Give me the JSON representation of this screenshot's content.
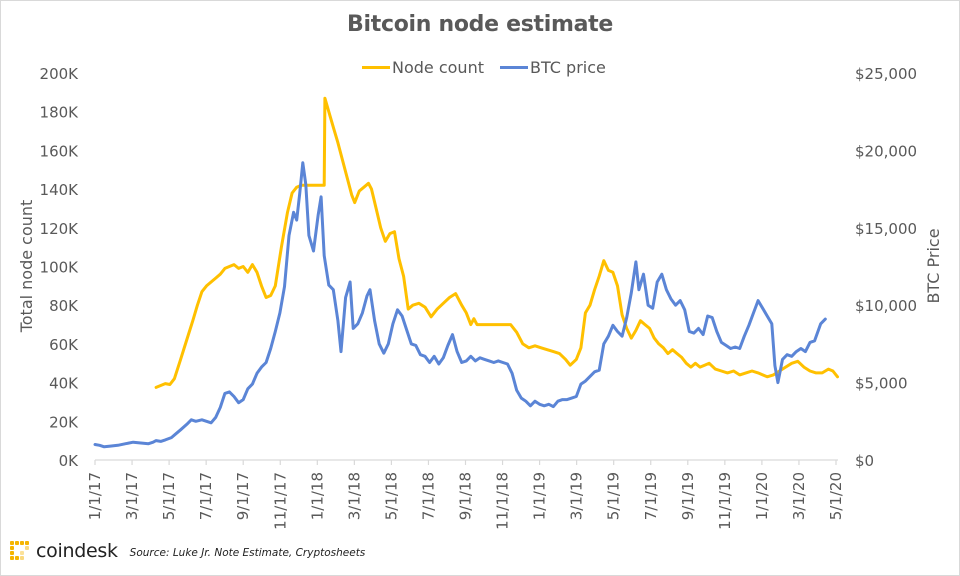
{
  "chart_data": {
    "type": "line",
    "title": "Bitcoin node estimate",
    "xlabel": "",
    "ylabel": "Total node count",
    "ylabel_right": "BTC Price",
    "legend": {
      "placement": "top-center",
      "entries": [
        "Node count",
        "BTC price"
      ]
    },
    "grid": false,
    "x_unit": "months since 1/1/17",
    "x_range": [
      0,
      40
    ],
    "x_tick_labels": [
      "1/1/17",
      "3/1/17",
      "5/1/17",
      "7/1/17",
      "9/1/17",
      "11/1/17",
      "1/1/18",
      "3/1/18",
      "5/1/18",
      "7/1/18",
      "9/1/18",
      "11/1/18",
      "1/1/19",
      "3/1/19",
      "5/1/19",
      "7/1/19",
      "9/1/19",
      "11/1/19",
      "1/1/20",
      "3/1/20",
      "5/1/20"
    ],
    "y_left": {
      "range": [
        0,
        200000
      ],
      "tick_labels": [
        "0K",
        "20K",
        "40K",
        "60K",
        "80K",
        "100K",
        "120K",
        "140K",
        "160K",
        "180K",
        "200K"
      ]
    },
    "y_right": {
      "range": [
        0,
        25000
      ],
      "tick_labels": [
        "$0",
        "$5,000",
        "$10,000",
        "$15,000",
        "$20,000",
        "$25,000"
      ]
    },
    "series": [
      {
        "name": "Node count",
        "axis": "left",
        "color": "#FFC000",
        "points": [
          [
            4.0,
            37500
          ],
          [
            4.3,
            38500
          ],
          [
            4.6,
            39500
          ],
          [
            4.9,
            39000
          ],
          [
            5.2,
            42000
          ],
          [
            5.6,
            52000
          ],
          [
            6.0,
            62000
          ],
          [
            6.4,
            72000
          ],
          [
            6.7,
            80000
          ],
          [
            7.0,
            87000
          ],
          [
            7.3,
            90000
          ],
          [
            7.6,
            92000
          ],
          [
            7.9,
            94000
          ],
          [
            8.2,
            96000
          ],
          [
            8.5,
            99000
          ],
          [
            8.8,
            100000
          ],
          [
            9.1,
            101000
          ],
          [
            9.4,
            99000
          ],
          [
            9.7,
            100000
          ],
          [
            10.0,
            97000
          ],
          [
            10.3,
            101000
          ],
          [
            10.6,
            97000
          ],
          [
            10.9,
            90000
          ],
          [
            11.2,
            84000
          ],
          [
            11.5,
            85000
          ],
          [
            11.8,
            90000
          ],
          [
            12.2,
            110000
          ],
          [
            12.6,
            128000
          ],
          [
            12.9,
            138000
          ],
          [
            13.2,
            141000
          ],
          [
            13.5,
            142000
          ],
          [
            14.0,
            142000
          ],
          [
            14.6,
            142000
          ],
          [
            15.0,
            142000
          ],
          [
            15.05,
            187000
          ],
          [
            15.3,
            180000
          ],
          [
            15.6,
            172000
          ],
          [
            15.9,
            164000
          ],
          [
            16.2,
            155000
          ],
          [
            16.5,
            146000
          ],
          [
            16.8,
            137000
          ],
          [
            17.0,
            133000
          ],
          [
            17.3,
            139000
          ],
          [
            17.6,
            141000
          ],
          [
            17.9,
            143000
          ],
          [
            18.1,
            140000
          ],
          [
            18.4,
            130000
          ],
          [
            18.7,
            120000
          ],
          [
            19.0,
            113000
          ],
          [
            19.3,
            117000
          ],
          [
            19.6,
            118000
          ],
          [
            19.9,
            104000
          ],
          [
            20.2,
            95000
          ],
          [
            20.5,
            78000
          ],
          [
            20.8,
            80000
          ],
          [
            21.2,
            81000
          ],
          [
            21.6,
            79000
          ],
          [
            22.0,
            74000
          ],
          [
            22.4,
            78000
          ],
          [
            22.8,
            81000
          ],
          [
            23.2,
            84000
          ],
          [
            23.6,
            86000
          ],
          [
            24.0,
            80000
          ],
          [
            24.3,
            76000
          ],
          [
            24.6,
            70000
          ],
          [
            24.8,
            73000
          ],
          [
            25.0,
            70000
          ],
          [
            25.6,
            70000
          ],
          [
            26.4,
            70000
          ],
          [
            27.2,
            70000
          ],
          [
            27.6,
            66000
          ],
          [
            28.0,
            60000
          ],
          [
            28.4,
            58000
          ],
          [
            28.8,
            59000
          ],
          [
            29.2,
            58000
          ],
          [
            29.6,
            57000
          ],
          [
            30.0,
            56000
          ],
          [
            30.4,
            55000
          ],
          [
            30.8,
            52000
          ],
          [
            31.1,
            49000
          ],
          [
            31.5,
            52000
          ],
          [
            31.8,
            58000
          ],
          [
            32.1,
            76000
          ],
          [
            32.4,
            80000
          ],
          [
            32.7,
            88000
          ],
          [
            33.0,
            95000
          ],
          [
            33.3,
            103000
          ],
          [
            33.6,
            98000
          ],
          [
            33.9,
            97000
          ],
          [
            34.2,
            90000
          ],
          [
            34.5,
            75000
          ],
          [
            34.8,
            68000
          ],
          [
            35.1,
            63000
          ],
          [
            35.4,
            67000
          ],
          [
            35.7,
            72000
          ],
          [
            36.0,
            70000
          ],
          [
            36.3,
            68000
          ],
          [
            36.6,
            63000
          ],
          [
            36.9,
            60000
          ],
          [
            37.2,
            58000
          ],
          [
            37.5,
            55000
          ],
          [
            37.8,
            57000
          ],
          [
            38.1,
            55000
          ],
          [
            38.4,
            53000
          ],
          [
            38.7,
            50000
          ],
          [
            39.0,
            48000
          ],
          [
            39.3,
            50000
          ],
          [
            39.6,
            48000
          ],
          [
            39.9,
            49000
          ],
          [
            40.2,
            50000
          ],
          [
            40.6,
            47000
          ],
          [
            41.0,
            46000
          ],
          [
            41.4,
            45000
          ],
          [
            41.8,
            46000
          ],
          [
            42.2,
            44000
          ],
          [
            42.6,
            45000
          ],
          [
            43.0,
            46000
          ],
          [
            43.4,
            45000
          ],
          [
            43.7,
            44000
          ],
          [
            44.0,
            43000
          ],
          [
            44.4,
            44000
          ],
          [
            44.8,
            46000
          ],
          [
            45.2,
            48000
          ],
          [
            45.6,
            50000
          ],
          [
            46.0,
            51000
          ],
          [
            46.4,
            48000
          ],
          [
            46.8,
            46000
          ],
          [
            47.2,
            45000
          ],
          [
            47.6,
            45000
          ],
          [
            48.0,
            47000
          ],
          [
            48.3,
            46000
          ],
          [
            48.6,
            43000
          ]
        ]
      },
      {
        "name": "BTC price",
        "axis": "right",
        "color": "#5B85D6",
        "points": [
          [
            0.0,
            1000
          ],
          [
            0.3,
            950
          ],
          [
            0.6,
            850
          ],
          [
            1.0,
            900
          ],
          [
            1.5,
            950
          ],
          [
            2.0,
            1050
          ],
          [
            2.5,
            1150
          ],
          [
            3.0,
            1100
          ],
          [
            3.5,
            1050
          ],
          [
            3.8,
            1150
          ],
          [
            4.0,
            1250
          ],
          [
            4.3,
            1200
          ],
          [
            4.6,
            1300
          ],
          [
            5.0,
            1450
          ],
          [
            5.3,
            1700
          ],
          [
            5.6,
            1950
          ],
          [
            6.0,
            2300
          ],
          [
            6.3,
            2600
          ],
          [
            6.6,
            2500
          ],
          [
            7.0,
            2600
          ],
          [
            7.3,
            2500
          ],
          [
            7.6,
            2400
          ],
          [
            7.9,
            2750
          ],
          [
            8.2,
            3400
          ],
          [
            8.5,
            4300
          ],
          [
            8.8,
            4400
          ],
          [
            9.1,
            4100
          ],
          [
            9.4,
            3700
          ],
          [
            9.7,
            3900
          ],
          [
            10.0,
            4600
          ],
          [
            10.3,
            4900
          ],
          [
            10.6,
            5600
          ],
          [
            10.9,
            6000
          ],
          [
            11.2,
            6300
          ],
          [
            11.5,
            7200
          ],
          [
            11.8,
            8300
          ],
          [
            12.1,
            9500
          ],
          [
            12.4,
            11200
          ],
          [
            12.7,
            14500
          ],
          [
            13.0,
            16000
          ],
          [
            13.2,
            15500
          ],
          [
            13.4,
            17200
          ],
          [
            13.6,
            19200
          ],
          [
            13.8,
            17800
          ],
          [
            14.0,
            14500
          ],
          [
            14.3,
            13500
          ],
          [
            14.6,
            15800
          ],
          [
            14.8,
            17000
          ],
          [
            15.0,
            13200
          ],
          [
            15.3,
            11300
          ],
          [
            15.6,
            11000
          ],
          [
            15.9,
            9000
          ],
          [
            16.1,
            7000
          ],
          [
            16.4,
            10500
          ],
          [
            16.7,
            11500
          ],
          [
            16.9,
            8500
          ],
          [
            17.2,
            8800
          ],
          [
            17.5,
            9500
          ],
          [
            17.8,
            10600
          ],
          [
            18.0,
            11000
          ],
          [
            18.3,
            9000
          ],
          [
            18.6,
            7500
          ],
          [
            18.9,
            6900
          ],
          [
            19.2,
            7500
          ],
          [
            19.5,
            8800
          ],
          [
            19.8,
            9700
          ],
          [
            20.1,
            9300
          ],
          [
            20.4,
            8400
          ],
          [
            20.7,
            7500
          ],
          [
            21.0,
            7400
          ],
          [
            21.3,
            6800
          ],
          [
            21.6,
            6700
          ],
          [
            21.9,
            6300
          ],
          [
            22.2,
            6700
          ],
          [
            22.5,
            6200
          ],
          [
            22.8,
            6600
          ],
          [
            23.1,
            7400
          ],
          [
            23.4,
            8100
          ],
          [
            23.7,
            7000
          ],
          [
            24.0,
            6300
          ],
          [
            24.3,
            6400
          ],
          [
            24.6,
            6700
          ],
          [
            24.9,
            6400
          ],
          [
            25.2,
            6600
          ],
          [
            25.5,
            6500
          ],
          [
            25.8,
            6400
          ],
          [
            26.1,
            6300
          ],
          [
            26.4,
            6400
          ],
          [
            26.7,
            6300
          ],
          [
            27.0,
            6200
          ],
          [
            27.3,
            5600
          ],
          [
            27.6,
            4500
          ],
          [
            27.9,
            4000
          ],
          [
            28.2,
            3800
          ],
          [
            28.5,
            3500
          ],
          [
            28.8,
            3800
          ],
          [
            29.1,
            3600
          ],
          [
            29.4,
            3500
          ],
          [
            29.7,
            3600
          ],
          [
            30.0,
            3450
          ],
          [
            30.3,
            3800
          ],
          [
            30.6,
            3900
          ],
          [
            30.9,
            3900
          ],
          [
            31.2,
            4000
          ],
          [
            31.5,
            4100
          ],
          [
            31.8,
            4900
          ],
          [
            32.1,
            5100
          ],
          [
            32.4,
            5400
          ],
          [
            32.7,
            5700
          ],
          [
            33.0,
            5800
          ],
          [
            33.3,
            7500
          ],
          [
            33.6,
            8000
          ],
          [
            33.9,
            8700
          ],
          [
            34.2,
            8300
          ],
          [
            34.5,
            8000
          ],
          [
            34.8,
            9200
          ],
          [
            35.1,
            10800
          ],
          [
            35.4,
            12800
          ],
          [
            35.6,
            11000
          ],
          [
            35.9,
            12000
          ],
          [
            36.2,
            10000
          ],
          [
            36.5,
            9800
          ],
          [
            36.8,
            11500
          ],
          [
            37.1,
            12000
          ],
          [
            37.4,
            11000
          ],
          [
            37.7,
            10400
          ],
          [
            38.0,
            10000
          ],
          [
            38.3,
            10300
          ],
          [
            38.6,
            9700
          ],
          [
            38.9,
            8300
          ],
          [
            39.2,
            8200
          ],
          [
            39.5,
            8500
          ],
          [
            39.8,
            8100
          ],
          [
            40.1,
            9300
          ],
          [
            40.4,
            9200
          ],
          [
            40.7,
            8300
          ],
          [
            41.0,
            7600
          ],
          [
            41.3,
            7400
          ],
          [
            41.6,
            7200
          ],
          [
            41.9,
            7300
          ],
          [
            42.2,
            7200
          ],
          [
            42.5,
            8000
          ],
          [
            42.8,
            8700
          ],
          [
            43.1,
            9500
          ],
          [
            43.4,
            10300
          ],
          [
            43.7,
            9800
          ],
          [
            44.0,
            9300
          ],
          [
            44.3,
            8800
          ],
          [
            44.5,
            6100
          ],
          [
            44.7,
            5000
          ],
          [
            45.0,
            6500
          ],
          [
            45.3,
            6800
          ],
          [
            45.6,
            6700
          ],
          [
            45.9,
            7000
          ],
          [
            46.2,
            7200
          ],
          [
            46.5,
            7000
          ],
          [
            46.8,
            7600
          ],
          [
            47.1,
            7700
          ],
          [
            47.5,
            8800
          ],
          [
            47.8,
            9100
          ]
        ]
      }
    ]
  },
  "footer": {
    "brand": "coindesk",
    "source": "Source:  Luke Jr. Note Estimate,  Cryptosheets"
  }
}
